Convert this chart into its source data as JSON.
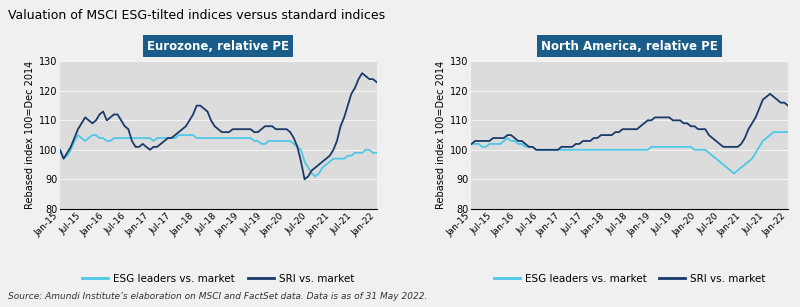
{
  "title": "Valuation of MSCI ESG-tilted indices versus standard indices",
  "source": "Source: Amundi Institute’s elaboration on MSCI and FactSet data. Data is as of 31 May 2022.",
  "left_title": "Eurozone, relative PE",
  "right_title": "North America, relative PE",
  "ylabel": "Rebased index 100=Dec 2014",
  "ylim": [
    80,
    130
  ],
  "yticks": [
    80,
    90,
    100,
    110,
    120,
    130
  ],
  "fig_bg": "#f0f0f0",
  "plot_bg": "#dcdcdc",
  "light_blue": "#4dc8e8",
  "dark_blue": "#1a3a6b",
  "title_box_color": "#1a5c8a",
  "legend_label_esg": "ESG leaders vs. market",
  "legend_label_sri": "SRI vs. market",
  "x_tick_labels": [
    "Jan-15",
    "Jul-15",
    "Jan-16",
    "Jul-16",
    "Jan-17",
    "Jul-17",
    "Jan-18",
    "Jul-18",
    "Jan-19",
    "Jul-19",
    "Jan-20",
    "Jul-20",
    "Jan-21",
    "Jul-21",
    "Jan-22"
  ],
  "ez_esg": [
    100,
    97,
    98,
    100,
    103,
    105,
    104,
    103,
    104,
    105,
    105,
    104,
    104,
    103,
    103,
    104,
    104,
    104,
    104,
    104,
    104,
    104,
    104,
    104,
    104,
    104,
    103,
    104,
    104,
    104,
    104,
    104,
    104,
    105,
    105,
    105,
    105,
    105,
    104,
    104,
    104,
    104,
    104,
    104,
    104,
    104,
    104,
    104,
    104,
    104,
    104,
    104,
    104,
    104,
    103,
    103,
    102,
    102,
    103,
    103,
    103,
    103,
    103,
    103,
    103,
    102,
    101,
    100,
    96,
    94,
    92,
    91,
    92,
    94,
    95,
    96,
    97,
    97,
    97,
    97,
    98,
    98,
    99,
    99,
    99,
    100,
    100,
    99,
    99
  ],
  "ez_sri": [
    100,
    97,
    99,
    101,
    104,
    107,
    109,
    111,
    110,
    109,
    110,
    112,
    113,
    110,
    111,
    112,
    112,
    110,
    108,
    107,
    103,
    101,
    101,
    102,
    101,
    100,
    101,
    101,
    102,
    103,
    104,
    104,
    105,
    106,
    107,
    108,
    110,
    112,
    115,
    115,
    114,
    113,
    110,
    108,
    107,
    106,
    106,
    106,
    107,
    107,
    107,
    107,
    107,
    107,
    106,
    106,
    107,
    108,
    108,
    108,
    107,
    107,
    107,
    107,
    106,
    104,
    101,
    96,
    90,
    91,
    93,
    94,
    95,
    96,
    97,
    98,
    100,
    103,
    108,
    111,
    115,
    119,
    121,
    124,
    126,
    125,
    124,
    124,
    123
  ],
  "na_esg": [
    102,
    102,
    102,
    101,
    101,
    102,
    102,
    102,
    102,
    103,
    104,
    103,
    103,
    102,
    102,
    101,
    101,
    101,
    100,
    100,
    100,
    100,
    100,
    100,
    100,
    100,
    100,
    100,
    100,
    100,
    100,
    100,
    100,
    100,
    100,
    100,
    100,
    100,
    100,
    100,
    100,
    100,
    100,
    100,
    100,
    100,
    100,
    100,
    100,
    100,
    101,
    101,
    101,
    101,
    101,
    101,
    101,
    101,
    101,
    101,
    101,
    101,
    100,
    100,
    100,
    100,
    99,
    98,
    97,
    96,
    95,
    94,
    93,
    92,
    93,
    94,
    95,
    96,
    97,
    99,
    101,
    103,
    104,
    105,
    106,
    106,
    106,
    106,
    106
  ],
  "na_sri": [
    102,
    103,
    103,
    103,
    103,
    103,
    104,
    104,
    104,
    104,
    105,
    105,
    104,
    103,
    103,
    102,
    101,
    101,
    100,
    100,
    100,
    100,
    100,
    100,
    100,
    101,
    101,
    101,
    101,
    102,
    102,
    103,
    103,
    103,
    104,
    104,
    105,
    105,
    105,
    105,
    106,
    106,
    107,
    107,
    107,
    107,
    107,
    108,
    109,
    110,
    110,
    111,
    111,
    111,
    111,
    111,
    110,
    110,
    110,
    109,
    109,
    108,
    108,
    107,
    107,
    107,
    105,
    104,
    103,
    102,
    101,
    101,
    101,
    101,
    101,
    102,
    104,
    107,
    109,
    111,
    114,
    117,
    118,
    119,
    118,
    117,
    116,
    116,
    115
  ]
}
